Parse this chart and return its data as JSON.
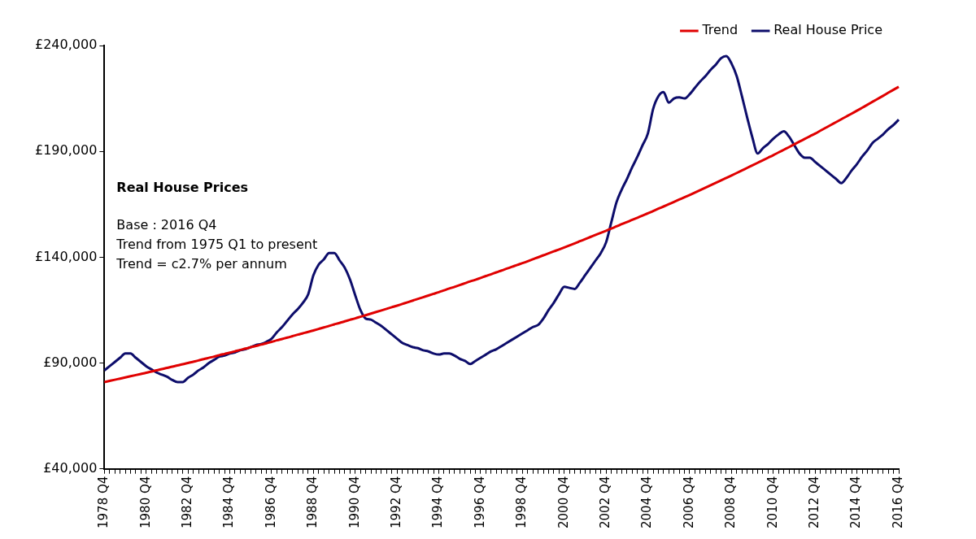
{
  "chart_data": {
    "type": "line",
    "legend": "top right",
    "grid": false,
    "marker": "none",
    "line_style": "solid",
    "annotations": [
      "Real House Prices",
      "Base : 2016 Q4",
      "Trend from 1975 Q1 to present",
      "Trend = c2.7% per annum"
    ],
    "ylim": [
      40000,
      240000
    ],
    "yticks": [
      {
        "value": 40000,
        "label": "£40,000"
      },
      {
        "value": 90000,
        "label": "£90,000"
      },
      {
        "value": 140000,
        "label": "£140,000"
      },
      {
        "value": 190000,
        "label": "£190,000"
      },
      {
        "value": 240000,
        "label": "£240,000"
      }
    ],
    "categories": [
      "1978 Q4",
      null,
      null,
      null,
      null,
      null,
      null,
      null,
      "1980 Q4",
      null,
      null,
      null,
      null,
      null,
      null,
      null,
      "1982 Q4",
      null,
      null,
      null,
      null,
      null,
      null,
      null,
      "1984 Q4",
      null,
      null,
      null,
      null,
      null,
      null,
      null,
      "1986 Q4",
      null,
      null,
      null,
      null,
      null,
      null,
      null,
      "1988 Q4",
      null,
      null,
      null,
      null,
      null,
      null,
      null,
      "1990 Q4",
      null,
      null,
      null,
      null,
      null,
      null,
      null,
      "1992 Q4",
      null,
      null,
      null,
      null,
      null,
      null,
      null,
      "1994 Q4",
      null,
      null,
      null,
      null,
      null,
      null,
      null,
      "1996 Q4",
      null,
      null,
      null,
      null,
      null,
      null,
      null,
      "1998 Q4",
      null,
      null,
      null,
      null,
      null,
      null,
      null,
      "2000 Q4",
      null,
      null,
      null,
      null,
      null,
      null,
      null,
      "2002 Q4",
      null,
      null,
      null,
      null,
      null,
      null,
      null,
      "2004 Q4",
      null,
      null,
      null,
      null,
      null,
      null,
      null,
      "2006 Q4",
      null,
      null,
      null,
      null,
      null,
      null,
      null,
      "2008 Q4",
      null,
      null,
      null,
      null,
      null,
      null,
      null,
      "2010 Q4",
      null,
      null,
      null,
      null,
      null,
      null,
      null,
      "2012 Q4",
      null,
      null,
      null,
      null,
      null,
      null,
      null,
      "2014 Q4",
      null,
      null,
      null,
      null,
      null,
      null,
      null,
      "2016 Q4"
    ],
    "series": [
      {
        "name": "Trend",
        "color": "#e00000",
        "values": [
          81000,
          81550,
          82100,
          82650,
          83200,
          83750,
          84300,
          84850,
          85400,
          86000,
          86550,
          87150,
          87700,
          88300,
          88850,
          89450,
          90000,
          90600,
          91200,
          91850,
          92450,
          93050,
          93700,
          94300,
          94900,
          95550,
          96200,
          96800,
          97450,
          98100,
          98700,
          99350,
          100000,
          100700,
          101350,
          102000,
          102700,
          103400,
          104050,
          104700,
          105400,
          106100,
          106800,
          107550,
          108250,
          108950,
          109700,
          110400,
          111100,
          111850,
          112600,
          113350,
          114100,
          114850,
          115600,
          116350,
          117100,
          117900,
          118700,
          119500,
          120300,
          121100,
          121900,
          122700,
          123500,
          124350,
          125200,
          126000,
          126850,
          127700,
          128550,
          129350,
          130200,
          131100,
          131950,
          132850,
          133700,
          134600,
          135450,
          136350,
          137200,
          138100,
          139050,
          139950,
          140900,
          141800,
          142750,
          143650,
          144600,
          145600,
          146550,
          147550,
          148550,
          149550,
          150550,
          151500,
          152500,
          153550,
          154550,
          155600,
          156600,
          157650,
          158650,
          159700,
          160700,
          161800,
          162900,
          163950,
          165050,
          166150,
          167250,
          168300,
          169400,
          170550,
          171700,
          172850,
          174000,
          175150,
          176300,
          177450,
          178600,
          179800,
          181000,
          182200,
          183400,
          184600,
          185800,
          187000,
          188200,
          189500,
          190750,
          192000,
          193300,
          194600,
          195850,
          197150,
          198400,
          199750,
          201100,
          202450,
          203800,
          205150,
          206500,
          207850,
          209200,
          210600,
          212000,
          213450,
          214850,
          216250,
          217700,
          219100,
          220500
        ]
      },
      {
        "name": "Real House Price",
        "color": "#0d0d6b",
        "values": [
          86500,
          88500,
          90500,
          92500,
          94500,
          94500,
          92500,
          90500,
          88500,
          87000,
          85500,
          84500,
          83500,
          82000,
          81000,
          81000,
          83000,
          84500,
          86500,
          88000,
          90000,
          91500,
          93000,
          93500,
          94500,
          95000,
          96000,
          96500,
          97500,
          98500,
          99000,
          100000,
          101500,
          104500,
          107000,
          110000,
          113000,
          115500,
          118500,
          122500,
          131500,
          136500,
          139000,
          142000,
          142000,
          138500,
          135000,
          129500,
          122000,
          115000,
          111000,
          110500,
          109000,
          107500,
          105500,
          103500,
          101500,
          99500,
          98500,
          97500,
          97000,
          96000,
          95500,
          94500,
          94000,
          94500,
          94500,
          93500,
          92000,
          91000,
          89500,
          91000,
          92500,
          94000,
          95500,
          96500,
          98000,
          99500,
          101000,
          102500,
          104000,
          105500,
          107000,
          108000,
          111000,
          115000,
          118500,
          122500,
          126000,
          125500,
          125000,
          128000,
          131500,
          135000,
          138500,
          142000,
          147000,
          156500,
          166000,
          172000,
          177000,
          182500,
          187500,
          193000,
          198500,
          210000,
          216000,
          218000,
          213000,
          215000,
          215500,
          215000,
          217000,
          220000,
          223000,
          225500,
          228500,
          231000,
          234000,
          235000,
          231500,
          225500,
          216000,
          206000,
          196500,
          189000,
          191500,
          193500,
          196000,
          198000,
          199500,
          197000,
          193000,
          189000,
          187000,
          187000,
          185000,
          183000,
          181000,
          179000,
          177000,
          175000,
          177500,
          181000,
          184000,
          187500,
          190500,
          194000,
          196000,
          198000,
          200500,
          202500,
          205000
        ]
      }
    ]
  }
}
